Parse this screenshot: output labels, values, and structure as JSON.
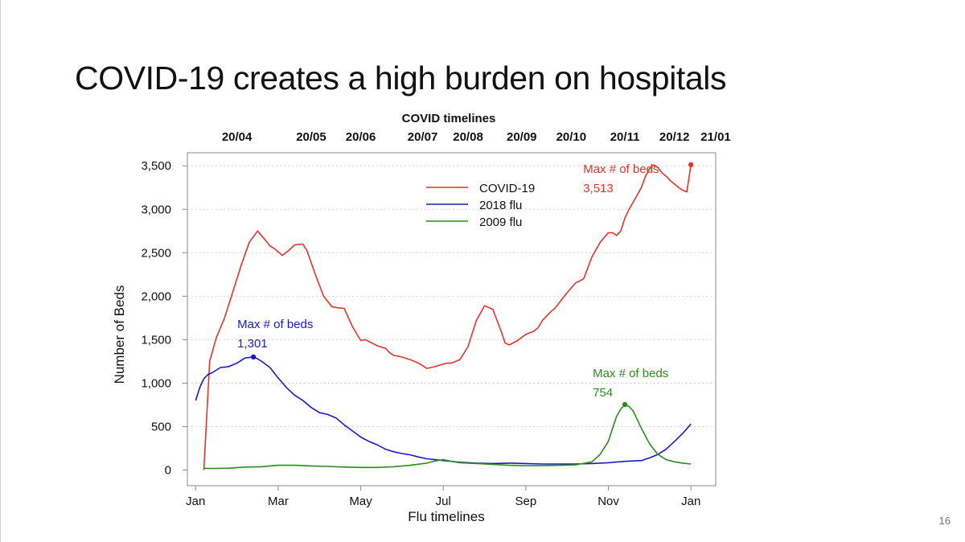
{
  "slide": {
    "title": "COVID-19 creates a high burden on hospitals",
    "page_number": "16"
  },
  "chart_data": {
    "type": "line",
    "top_axis_title": "COVID timelines",
    "top_axis_labels": [
      "20/04",
      "20/05",
      "20/06",
      "20/07",
      "20/08",
      "20/09",
      "20/10",
      "20/11",
      "20/12",
      "21/01"
    ],
    "top_axis_positions": [
      0.5,
      1.4,
      2.0,
      2.75,
      3.3,
      3.95,
      4.55,
      5.2,
      5.8,
      6.3
    ],
    "xlabel": "Flu timelines",
    "ylabel": "Number of Beds",
    "x_ticks": [
      0,
      1,
      2,
      3,
      4,
      5,
      6
    ],
    "x_tick_labels": [
      "Jan",
      "Mar",
      "May",
      "Jul",
      "Sep",
      "Nov",
      "Jan"
    ],
    "xlim": [
      -0.1,
      6.3
    ],
    "ylim": [
      -180,
      3650
    ],
    "y_ticks": [
      0,
      500,
      1000,
      1500,
      2000,
      2500,
      3000,
      3500
    ],
    "y_tick_labels": [
      "0",
      "500",
      "1,000",
      "1,500",
      "2,000",
      "2,500",
      "3,000",
      "3,500"
    ],
    "grid": "horizontal dotted",
    "legend_position": "top-center",
    "series": [
      {
        "name": "COVID-19",
        "color": "#e8322a",
        "x": [
          0.1,
          0.17,
          0.25,
          0.35,
          0.45,
          0.55,
          0.65,
          0.75,
          0.85,
          0.9,
          0.95,
          1.05,
          1.12,
          1.2,
          1.3,
          1.35,
          1.45,
          1.55,
          1.65,
          1.7,
          1.8,
          1.9,
          2.0,
          2.05,
          2.1,
          2.2,
          2.3,
          2.35,
          2.4,
          2.5,
          2.6,
          2.7,
          2.8,
          2.9,
          3.0,
          3.05,
          3.1,
          3.2,
          3.3,
          3.4,
          3.5,
          3.6,
          3.7,
          3.75,
          3.8,
          3.9,
          4.0,
          4.1,
          4.15,
          4.2,
          4.3,
          4.35,
          4.4,
          4.5,
          4.6,
          4.7,
          4.8,
          4.9,
          5.0,
          5.05,
          5.1,
          5.15,
          5.2,
          5.25,
          5.3,
          5.4,
          5.45,
          5.5,
          5.55,
          5.6,
          5.65,
          5.7,
          5.75,
          5.8,
          5.85,
          5.9,
          5.95,
          6.0
        ],
        "values": [
          0,
          1250,
          1520,
          1750,
          2050,
          2350,
          2620,
          2750,
          2640,
          2580,
          2550,
          2470,
          2520,
          2590,
          2600,
          2520,
          2250,
          2000,
          1880,
          1870,
          1860,
          1650,
          1490,
          1500,
          1480,
          1430,
          1400,
          1350,
          1320,
          1300,
          1270,
          1230,
          1170,
          1190,
          1220,
          1230,
          1230,
          1270,
          1420,
          1720,
          1890,
          1850,
          1600,
          1460,
          1440,
          1490,
          1560,
          1600,
          1640,
          1720,
          1820,
          1860,
          1920,
          2040,
          2150,
          2200,
          2450,
          2620,
          2730,
          2730,
          2700,
          2750,
          2900,
          3000,
          3080,
          3250,
          3380,
          3470,
          3510,
          3480,
          3420,
          3380,
          3330,
          3290,
          3250,
          3220,
          3200,
          3513
        ],
        "max_label": "Max # of beds",
        "max_value_label": "3,513",
        "max_x": 6.0,
        "max_value": 3513
      },
      {
        "name": "2018 flu",
        "color": "#1a1ac8",
        "x": [
          0.0,
          0.05,
          0.1,
          0.15,
          0.2,
          0.3,
          0.4,
          0.5,
          0.6,
          0.7,
          0.75,
          0.8,
          0.9,
          1.0,
          1.1,
          1.2,
          1.3,
          1.4,
          1.5,
          1.6,
          1.7,
          1.8,
          1.9,
          2.0,
          2.1,
          2.2,
          2.3,
          2.4,
          2.5,
          2.6,
          2.7,
          2.8,
          2.9,
          3.0,
          3.2,
          3.4,
          3.6,
          3.8,
          4.0,
          4.2,
          4.4,
          4.6,
          4.8,
          5.0,
          5.2,
          5.4,
          5.5,
          5.6,
          5.7,
          5.8,
          5.9,
          6.0
        ],
        "values": [
          800,
          950,
          1050,
          1100,
          1120,
          1180,
          1190,
          1230,
          1290,
          1301,
          1280,
          1250,
          1180,
          1060,
          950,
          860,
          800,
          720,
          660,
          640,
          600,
          520,
          450,
          380,
          330,
          290,
          240,
          210,
          190,
          175,
          150,
          130,
          120,
          110,
          90,
          80,
          75,
          80,
          75,
          70,
          70,
          70,
          75,
          85,
          100,
          110,
          140,
          180,
          240,
          330,
          420,
          530
        ],
        "max_label": "Max # of beds",
        "max_value_label": "1,301",
        "max_x": 0.7,
        "max_value": 1301
      },
      {
        "name": "2009 flu",
        "color": "#2e8b1e",
        "x": [
          0.1,
          0.2,
          0.4,
          0.6,
          0.8,
          1.0,
          1.2,
          1.4,
          1.6,
          1.8,
          2.0,
          2.2,
          2.4,
          2.6,
          2.8,
          2.9,
          3.0,
          3.1,
          3.2,
          3.4,
          3.6,
          3.8,
          4.0,
          4.2,
          4.4,
          4.6,
          4.8,
          4.9,
          5.0,
          5.05,
          5.1,
          5.15,
          5.2,
          5.25,
          5.3,
          5.35,
          5.4,
          5.5,
          5.6,
          5.7,
          5.8,
          5.9,
          6.0
        ],
        "values": [
          20,
          18,
          22,
          35,
          38,
          55,
          55,
          48,
          42,
          35,
          30,
          30,
          38,
          55,
          80,
          105,
          120,
          100,
          85,
          75,
          65,
          55,
          50,
          50,
          55,
          60,
          95,
          180,
          330,
          480,
          620,
          700,
          754,
          730,
          680,
          580,
          480,
          300,
          180,
          120,
          95,
          80,
          70
        ],
        "max_label": "Max # of beds",
        "max_value_label": "754",
        "max_x": 5.2,
        "max_value": 754
      }
    ]
  }
}
